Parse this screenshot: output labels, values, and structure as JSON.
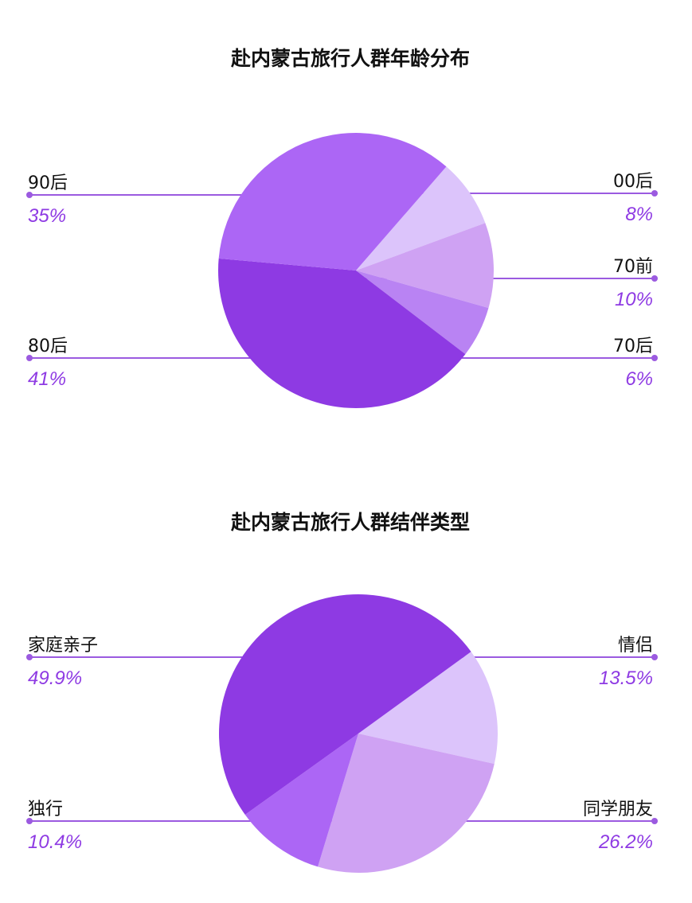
{
  "chart_data": [
    {
      "type": "pie",
      "title": "赴内蒙古旅行人群年龄分布",
      "start_angle_deg": 41,
      "slices": [
        {
          "label": "00后",
          "value": 8,
          "display": "8%",
          "color": "#dcc4fb",
          "side": "right"
        },
        {
          "label": "70前",
          "value": 10,
          "display": "10%",
          "color": "#cfa2f3",
          "side": "right"
        },
        {
          "label": "70后",
          "value": 6,
          "display": "6%",
          "color": "#b983f3",
          "side": "right"
        },
        {
          "label": "80后",
          "value": 41,
          "display": "41%",
          "color": "#8e3ae3",
          "side": "left"
        },
        {
          "label": "90后",
          "value": 35,
          "display": "35%",
          "color": "#ac66f5",
          "side": "left"
        }
      ]
    },
    {
      "type": "pie",
      "title": "赴内蒙古旅行人群结伴类型",
      "start_angle_deg": 54,
      "slices": [
        {
          "label": "情侣",
          "value": 13.5,
          "display": "13.5%",
          "color": "#dcc4fb",
          "side": "right"
        },
        {
          "label": "同学朋友",
          "value": 26.2,
          "display": "26.2%",
          "color": "#cfa2f3",
          "side": "right"
        },
        {
          "label": "独行",
          "value": 10.4,
          "display": "10.4%",
          "color": "#ac66f5",
          "side": "left"
        },
        {
          "label": "家庭亲子",
          "value": 49.9,
          "display": "49.9%",
          "color": "#8e3ae3",
          "side": "left"
        }
      ]
    }
  ],
  "line_color": "#9b5ae0",
  "percent_color": "#8e3ae3"
}
